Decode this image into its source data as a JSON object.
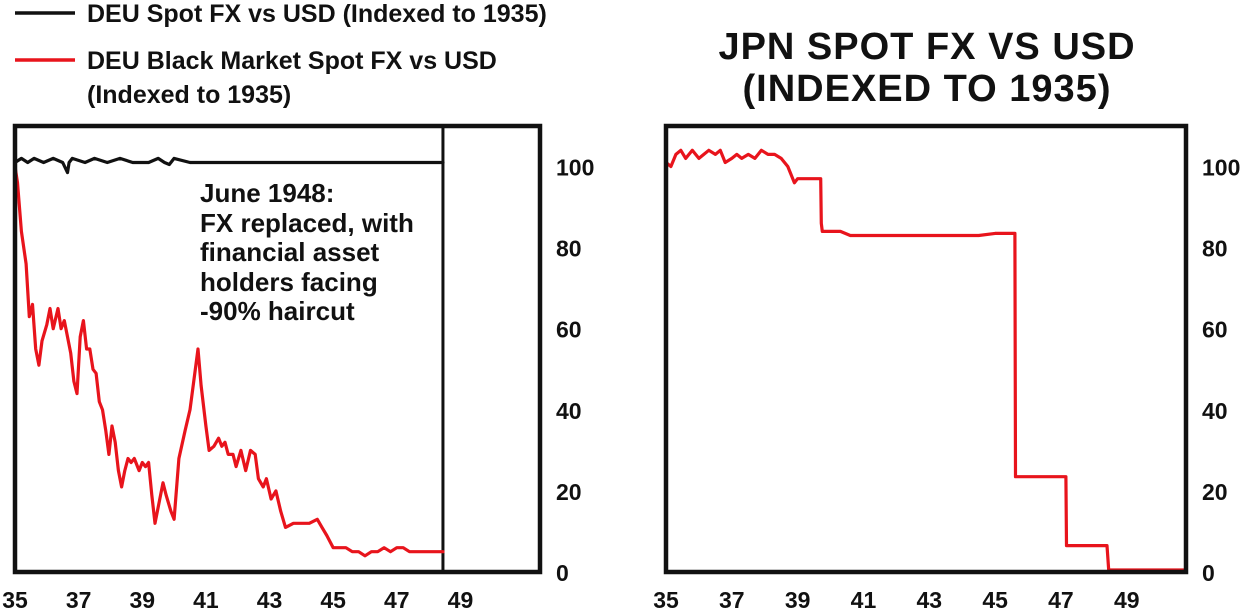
{
  "legend": [
    {
      "label": "DEU Spot FX vs USD (Indexed to 1935)",
      "color": "#111111"
    },
    {
      "label_lines": [
        "DEU Black Market Spot FX vs USD",
        "(Indexed to 1935)"
      ],
      "color": "#e8141c"
    }
  ],
  "chart_data": [
    {
      "type": "line",
      "title": "",
      "xlabel": "",
      "ylabel": "",
      "xlim": [
        1935,
        1951.5
      ],
      "ylim": [
        0,
        110
      ],
      "x_ticks": [
        "35",
        "37",
        "39",
        "41",
        "43",
        "45",
        "47",
        "49"
      ],
      "y_ticks": [
        "0",
        "20",
        "40",
        "60",
        "80",
        "100"
      ],
      "y_axis_side": "right",
      "grid": false,
      "legend_position": "top-left",
      "marker_line": {
        "x": 1948.45,
        "note": "June 1948"
      },
      "annotation_lines": [
        "June 1948:",
        "FX replaced, with",
        "financial asset",
        "holders facing",
        "-90% haircut"
      ],
      "series": [
        {
          "name": "DEU Spot FX vs USD (Indexed to 1935)",
          "color": "#111111",
          "x": [
            1935,
            1935.2,
            1935.4,
            1935.6,
            1935.9,
            1936.2,
            1936.5,
            1936.65,
            1936.7,
            1936.8,
            1937.2,
            1937.5,
            1937.9,
            1938.3,
            1938.7,
            1939.2,
            1939.5,
            1939.7,
            1939.85,
            1940,
            1940.5,
            1941,
            1948.45
          ],
          "y": [
            101,
            102,
            101,
            102,
            101,
            102,
            101,
            98.5,
            101,
            102,
            101,
            102,
            101,
            102,
            101,
            101,
            102,
            101,
            100.5,
            102,
            101,
            101,
            101
          ]
        },
        {
          "name": "DEU Black Market Spot FX vs USD (Indexed to 1935)",
          "color": "#e8141c",
          "x": [
            1935,
            1935.08,
            1935.2,
            1935.35,
            1935.45,
            1935.55,
            1935.65,
            1935.75,
            1935.85,
            1936,
            1936.1,
            1936.2,
            1936.35,
            1936.45,
            1936.55,
            1936.65,
            1936.75,
            1936.85,
            1936.95,
            1937.05,
            1937.15,
            1937.25,
            1937.35,
            1937.45,
            1937.55,
            1937.65,
            1937.75,
            1937.85,
            1937.95,
            1938.05,
            1938.15,
            1938.25,
            1938.35,
            1938.45,
            1938.55,
            1938.65,
            1938.75,
            1938.9,
            1939,
            1939.1,
            1939.2,
            1939.3,
            1939.4,
            1939.55,
            1939.65,
            1939.75,
            1939.9,
            1940,
            1940.15,
            1940.35,
            1940.5,
            1940.75,
            1940.85,
            1941,
            1941.1,
            1941.25,
            1941.4,
            1941.5,
            1941.6,
            1941.7,
            1941.85,
            1941.95,
            1942.1,
            1942.25,
            1942.4,
            1942.55,
            1942.65,
            1942.8,
            1942.9,
            1943.05,
            1943.2,
            1943.35,
            1943.5,
            1943.75,
            1944,
            1944.25,
            1944.5,
            1944.65,
            1944.8,
            1945,
            1945.2,
            1945.4,
            1945.6,
            1945.8,
            1946,
            1946.2,
            1946.4,
            1946.6,
            1946.8,
            1947,
            1947.2,
            1947.4,
            1947.6,
            1947.8,
            1948,
            1948.2,
            1948.45
          ],
          "y": [
            100,
            96,
            84,
            76,
            63,
            66,
            55,
            51,
            57,
            61,
            65,
            60,
            65,
            60,
            62,
            58,
            54,
            47,
            44,
            58,
            62,
            55,
            55,
            50,
            49,
            42,
            40,
            35,
            29,
            36,
            32,
            25,
            21,
            25,
            28,
            27,
            28,
            25,
            27,
            26,
            27,
            19,
            12,
            18,
            22,
            19,
            15,
            13,
            28,
            35,
            40,
            55,
            46,
            36,
            30,
            31,
            33,
            31,
            32,
            29,
            29,
            26,
            30,
            25,
            30,
            29,
            23,
            21,
            23,
            18,
            20,
            15,
            11,
            12,
            12,
            12,
            13,
            11,
            9,
            6,
            6,
            6,
            5,
            5,
            4,
            5,
            5,
            6,
            5,
            6,
            6,
            5,
            5,
            5,
            5,
            5,
            5
          ]
        }
      ]
    },
    {
      "type": "line",
      "title_lines": [
        "JPN SPOT FX VS USD",
        "(INDEXED TO 1935)"
      ],
      "xlabel": "",
      "ylabel": "",
      "xlim": [
        1935,
        1950.8
      ],
      "ylim": [
        0,
        110
      ],
      "x_ticks": [
        "35",
        "37",
        "39",
        "41",
        "43",
        "45",
        "47",
        "49"
      ],
      "y_ticks": [
        "0",
        "20",
        "40",
        "60",
        "80",
        "100"
      ],
      "y_axis_side": "right",
      "grid": false,
      "series": [
        {
          "name": "",
          "color": "#e8141c",
          "x": [
            1935,
            1935.15,
            1935.3,
            1935.45,
            1935.6,
            1935.8,
            1936,
            1936.15,
            1936.3,
            1936.5,
            1936.65,
            1936.8,
            1937,
            1937.15,
            1937.3,
            1937.5,
            1937.7,
            1937.9,
            1938.1,
            1938.3,
            1938.5,
            1938.7,
            1938.9,
            1939,
            1939.1,
            1939.2,
            1939.5,
            1939.7,
            1939.72,
            1939.75,
            1940,
            1940.3,
            1940.6,
            1941,
            1942,
            1943,
            1943.6,
            1944,
            1944.5,
            1945,
            1945.3,
            1945.6,
            1945.62,
            1946.5,
            1947.15,
            1947.17,
            1948.1,
            1948.4,
            1948.45,
            1949,
            1949.4,
            1950,
            1950.8
          ],
          "y": [
            101,
            100,
            103,
            104,
            102,
            104,
            102,
            103,
            104,
            103,
            104,
            101,
            102,
            103,
            102,
            103,
            102,
            104,
            103,
            103,
            102,
            100,
            96,
            97,
            97,
            97,
            97,
            97,
            86,
            84,
            84,
            84,
            83,
            83,
            83,
            83,
            83,
            83,
            83,
            83.5,
            83.5,
            83.5,
            23.5,
            23.5,
            23.5,
            6.5,
            6.5,
            6.5,
            0.5,
            0.5,
            0.5,
            0.5,
            0.5
          ]
        }
      ]
    }
  ]
}
